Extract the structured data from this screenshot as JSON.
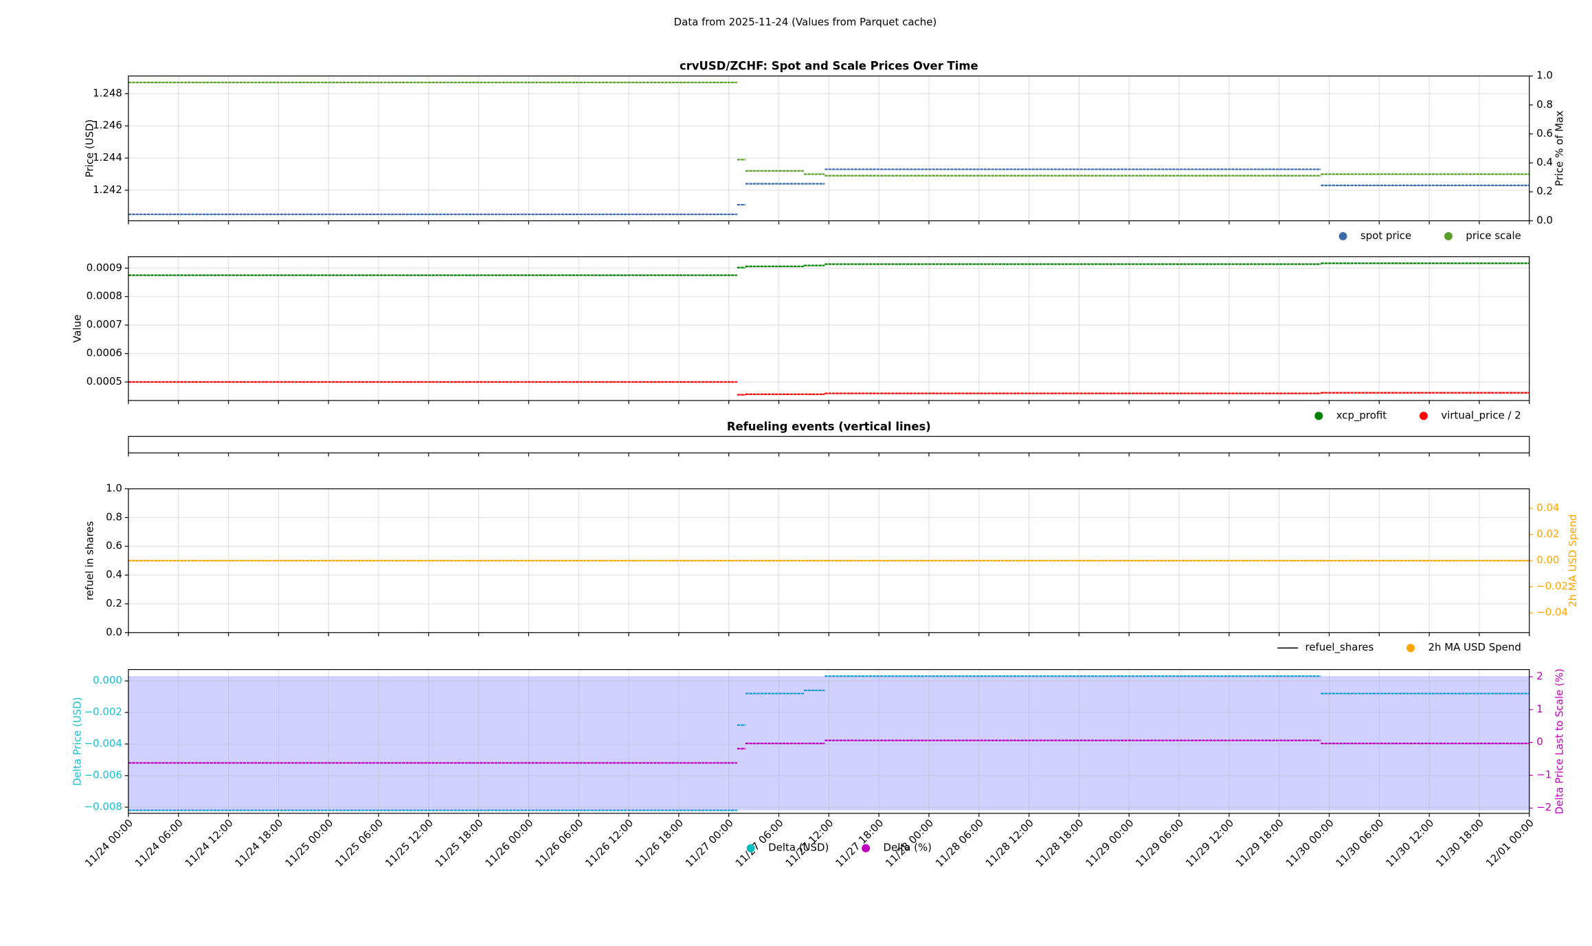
{
  "suptitle": "Data from 2025-11-24 (Values from Parquet cache)",
  "chart_data": [
    {
      "type": "line",
      "title": "crvUSD/ZCHF: Spot and Scale Prices Over Time",
      "ylabel": "Price (USD)",
      "y2label": "Price % of Max",
      "ylim": [
        1.2401,
        1.2491
      ],
      "yticks": [
        1.242,
        1.244,
        1.246,
        1.248
      ],
      "y2lim": [
        0,
        1
      ],
      "y2ticks": [
        {
          "value": 0,
          "label": "0.0"
        },
        0.2,
        0.4,
        0.6,
        0.8,
        {
          "value": 1,
          "label": "1.0"
        }
      ],
      "grid": true,
      "drawstyle": "steps-post",
      "legend": "below right",
      "series": [
        {
          "name": "spot price",
          "color": "#3b6aa8",
          "legend_marker": "dot",
          "x": [
            "11/24 00:00",
            "11/27 01:00",
            "11/27 02:00",
            "11/27 11:30",
            "11/29 23:00"
          ],
          "values": [
            1.2405,
            1.2411,
            1.2424,
            1.2433,
            1.2423
          ]
        },
        {
          "name": "price scale",
          "color": "#5a9f2a",
          "legend_marker": "dot",
          "x": [
            "11/24 00:00",
            "11/27 01:00",
            "11/27 02:00",
            "11/27 09:00",
            "11/27 11:30",
            "11/29 23:00"
          ],
          "values": [
            1.2487,
            1.2439,
            1.2432,
            1.243,
            1.2429,
            1.243
          ]
        }
      ]
    },
    {
      "type": "line",
      "ylabel": "Value",
      "ylim": [
        0.000435,
        0.00094
      ],
      "yticks": [
        0.0005,
        0.0006,
        0.0007,
        0.0008,
        0.0009
      ],
      "grid": true,
      "drawstyle": "steps-post",
      "legend": "below right",
      "series": [
        {
          "name": "xcp_profit",
          "color": "#008000",
          "legend_marker": "dot",
          "x": [
            "11/24 00:00",
            "11/27 01:00",
            "11/27 02:00",
            "11/27 09:00",
            "11/27 11:30",
            "11/29 23:00"
          ],
          "values": [
            0.000875,
            0.000902,
            0.000906,
            0.000909,
            0.000914,
            0.000917
          ]
        },
        {
          "name": "virtual_price / 2",
          "color": "#ff0000",
          "legend_marker": "dot",
          "x": [
            "11/24 00:00",
            "11/27 01:00",
            "11/27 02:00",
            "11/27 11:30",
            "11/29 23:00"
          ],
          "values": [
            0.0005,
            0.000455,
            0.000457,
            0.00046,
            0.000462
          ]
        }
      ]
    },
    {
      "type": "line",
      "title": "Refueling events (vertical lines)",
      "grid": false,
      "series": []
    },
    {
      "type": "line",
      "ylabel": "refuel in shares",
      "y2label": "2h MA USD Spend",
      "y2color": "#ffa500",
      "ylim": [
        0,
        1
      ],
      "yticks": [
        {
          "value": 0,
          "label": "0.0"
        },
        0.2,
        0.4,
        0.6,
        0.8,
        {
          "value": 1,
          "label": "1.0"
        }
      ],
      "y2lim": [
        -0.055,
        0.055
      ],
      "y2ticks": [
        {
          "value": -0.04,
          "label": "−0.04"
        },
        {
          "value": -0.02,
          "label": "−0.02"
        },
        {
          "value": 0,
          "label": "0.00"
        },
        0.02,
        0.04
      ],
      "grid": true,
      "drawstyle": "steps-post",
      "legend": "below right",
      "series": [
        {
          "name": "refuel_shares",
          "color": "#000000",
          "legend_marker": "line",
          "x": [],
          "values": []
        },
        {
          "name": "2h MA USD Spend",
          "color": "#ffa500",
          "legend_marker": "dot",
          "axis": "y2",
          "x": [
            "11/24 00:00"
          ],
          "values": [
            0
          ]
        }
      ]
    },
    {
      "type": "line",
      "ylabel": "Delta Price (USD)",
      "ycolor": "#17becf",
      "y2label": "Delta Price Last to Scale (%)",
      "y2color": "#bf00bf",
      "ylim": [
        -0.00839,
        0.00072
      ],
      "yticks": [
        {
          "value": -0.008,
          "label": "−0.008"
        },
        {
          "value": -0.006,
          "label": "−0.006"
        },
        {
          "value": -0.004,
          "label": "−0.004"
        },
        {
          "value": -0.002,
          "label": "−0.002"
        },
        {
          "value": 0,
          "label": "0.000"
        }
      ],
      "y2lim": [
        -2.16,
        2.22
      ],
      "y2ticks": [
        {
          "value": -2,
          "label": "−2"
        },
        {
          "value": -1,
          "label": "−1"
        },
        0,
        1,
        2
      ],
      "band": [
        -0.0082,
        0.0003
      ],
      "band_color": "#ccccff",
      "xlim": [
        "11/24 00:00",
        "12/01 00:00"
      ],
      "xticks": [
        "11/24 00:00",
        "11/24 06:00",
        "11/24 12:00",
        "11/24 18:00",
        "11/25 00:00",
        "11/25 06:00",
        "11/25 12:00",
        "11/25 18:00",
        "11/26 00:00",
        "11/26 06:00",
        "11/26 12:00",
        "11/26 18:00",
        "11/27 00:00",
        "11/27 06:00",
        "11/27 12:00",
        "11/27 18:00",
        "11/28 00:00",
        "11/28 06:00",
        "11/28 12:00",
        "11/28 18:00",
        "11/29 00:00",
        "11/29 06:00",
        "11/29 12:00",
        "11/29 18:00",
        "11/30 00:00",
        "11/30 06:00",
        "11/30 12:00",
        "11/30 18:00",
        "12/01 00:00"
      ],
      "grid": true,
      "drawstyle": "steps-post",
      "legend": "below center",
      "series": [
        {
          "name": "Delta (USD)",
          "color": "#1a9bd0",
          "legend_color": "#00bfbf",
          "legend_marker": "dot",
          "x": [
            "11/24 00:00",
            "11/27 01:00",
            "11/27 02:00",
            "11/27 09:00",
            "11/27 11:30",
            "11/29 23:00"
          ],
          "values": [
            -0.0082,
            -0.0028,
            -0.0008,
            -0.0006,
            0.0003,
            -0.0008
          ]
        },
        {
          "name": "Delta (%)",
          "color": "#bf00bf",
          "legend_marker": "dot",
          "axis": "y2",
          "x": [
            "11/24 00:00",
            "11/27 01:00",
            "11/27 02:00",
            "11/27 11:30",
            "11/29 23:00"
          ],
          "values": [
            -0.625,
            -0.19,
            -0.03,
            0.06,
            -0.03
          ]
        }
      ]
    }
  ]
}
